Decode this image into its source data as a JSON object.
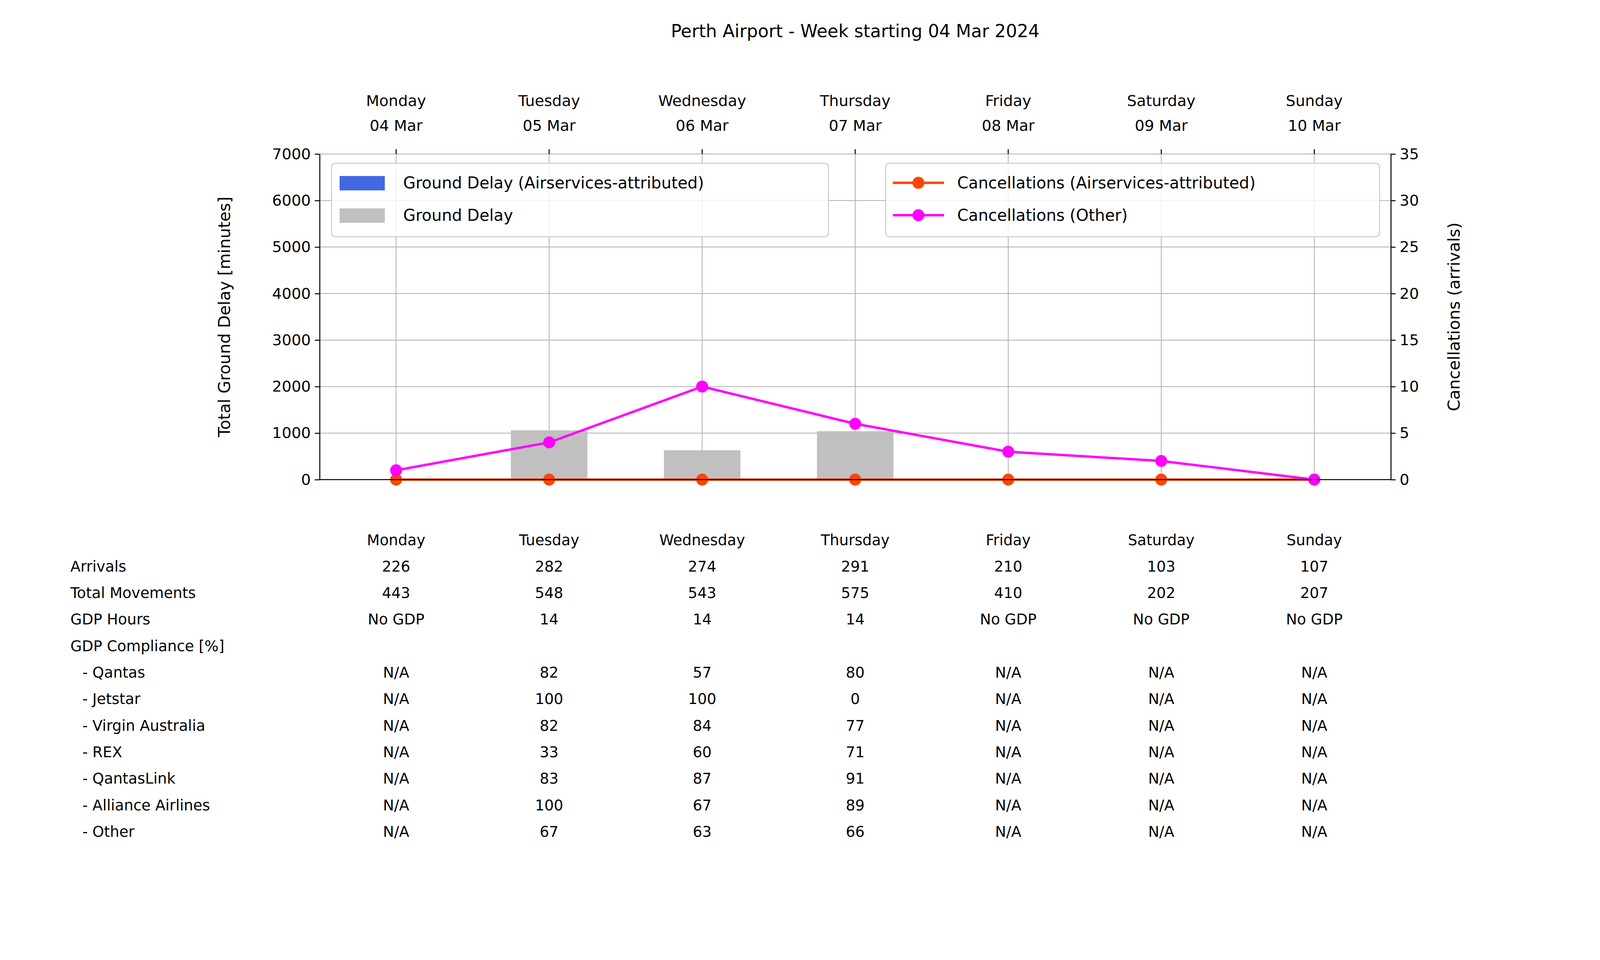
{
  "chart_data": {
    "type": "bar",
    "title": "Perth Airport - Week starting 04 Mar 2024",
    "categories": [
      "Monday\n04 Mar",
      "Tuesday\n05 Mar",
      "Wednesday\n06 Mar",
      "Thursday\n07 Mar",
      "Friday\n08 Mar",
      "Saturday\n09 Mar",
      "Sunday\n10 Mar"
    ],
    "ylabel": "Total Ground Delay [minutes]",
    "y2label": "Cancellations (arrivals)",
    "ylim": [
      0,
      7000
    ],
    "yticks": [
      0,
      1000,
      2000,
      3000,
      4000,
      5000,
      6000,
      7000
    ],
    "y2lim": [
      0,
      35
    ],
    "y2ticks": [
      0,
      5,
      10,
      15,
      20,
      25,
      30,
      35
    ],
    "grid": true,
    "legend": "top",
    "series": [
      {
        "name": "Ground Delay (Airservices-attributed)",
        "type": "bar",
        "color": "#4169e1",
        "values": [
          0,
          0,
          0,
          0,
          0,
          0,
          0
        ]
      },
      {
        "name": "Ground Delay",
        "type": "bar",
        "color": "#c0c0c0",
        "values": [
          0,
          1060,
          630,
          1040,
          0,
          0,
          0
        ]
      },
      {
        "name": "Cancellations (Airservices-attributed)",
        "type": "line",
        "axis": "y2",
        "color": "#ff4500",
        "marker": "circle",
        "values": [
          0,
          0,
          0,
          0,
          0,
          0,
          0
        ]
      },
      {
        "name": "Cancellations (Other)",
        "type": "line",
        "axis": "y2",
        "color": "#ff00ff",
        "marker": "circle",
        "values": [
          1,
          4,
          10,
          6,
          3,
          2,
          0
        ]
      }
    ]
  },
  "table": {
    "columns": [
      "Monday",
      "Tuesday",
      "Wednesday",
      "Thursday",
      "Friday",
      "Saturday",
      "Sunday"
    ],
    "rows": [
      {
        "label": "Arrivals",
        "values": [
          226,
          282,
          274,
          291,
          210,
          103,
          107
        ]
      },
      {
        "label": "Total Movements",
        "values": [
          443,
          548,
          543,
          575,
          410,
          202,
          207
        ]
      },
      {
        "label": "GDP Hours",
        "values": [
          "No GDP",
          14,
          14,
          14,
          "No GDP",
          "No GDP",
          "No GDP"
        ]
      },
      {
        "label": "GDP Compliance [%]"
      },
      {
        "label": "- Qantas",
        "values": [
          "N/A",
          82,
          57,
          80,
          "N/A",
          "N/A",
          "N/A"
        ]
      },
      {
        "label": "- Jetstar",
        "values": [
          "N/A",
          100,
          100,
          0,
          "N/A",
          "N/A",
          "N/A"
        ]
      },
      {
        "label": "- Virgin Australia",
        "values": [
          "N/A",
          82,
          84,
          77,
          "N/A",
          "N/A",
          "N/A"
        ]
      },
      {
        "label": "- REX",
        "values": [
          "N/A",
          33,
          60,
          71,
          "N/A",
          "N/A",
          "N/A"
        ]
      },
      {
        "label": "- QantasLink",
        "values": [
          "N/A",
          83,
          87,
          91,
          "N/A",
          "N/A",
          "N/A"
        ]
      },
      {
        "label": "- Alliance Airlines",
        "values": [
          "N/A",
          100,
          67,
          89,
          "N/A",
          "N/A",
          "N/A"
        ]
      },
      {
        "label": "- Other",
        "values": [
          "N/A",
          67,
          63,
          66,
          "N/A",
          "N/A",
          "N/A"
        ]
      }
    ]
  }
}
